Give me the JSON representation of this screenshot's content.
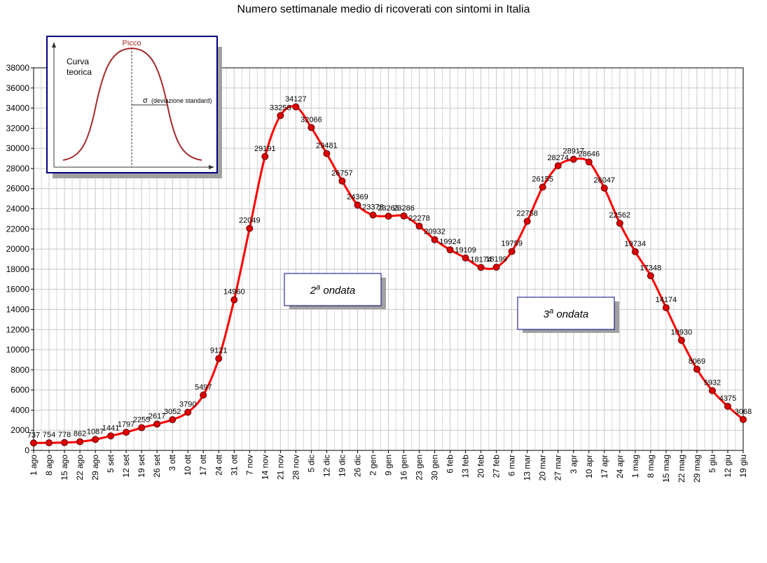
{
  "chart_data": {
    "type": "line",
    "title": "Numero settimanale medio di ricoverati con sintomi in Italia",
    "xlabel": "",
    "ylabel": "",
    "ylim": [
      0,
      38000
    ],
    "ytick_step": 2000,
    "grid": true,
    "line_color": "#ff0000",
    "marker_color": "#dd0000",
    "categories": [
      "1 ago",
      "8 ago",
      "15 ago",
      "22 ago",
      "29 ago",
      "5 set",
      "12 set",
      "19 set",
      "26 set",
      "3 ott",
      "10 ott",
      "17 ott",
      "24 ott",
      "31 ott",
      "7 nov",
      "14 nov",
      "21 nov",
      "28 nov",
      "5 dic",
      "12 dic",
      "19 dic",
      "26 dic",
      "2 gen",
      "9 gen",
      "16 gen",
      "23 gen",
      "30 gen",
      "6 feb",
      "13 feb",
      "20 feb",
      "27 feb",
      "6 mar",
      "13 mar",
      "20 mar",
      "27 mar",
      "3 apr",
      "10 apr",
      "17 apr",
      "24 apr",
      "1 mag",
      "8 mag",
      "15 mag",
      "22 mag",
      "29 mag",
      "5 giu",
      "12 giu",
      "19 giu"
    ],
    "values": [
      737,
      754,
      778,
      862,
      1087,
      1441,
      1797,
      2255,
      2617,
      3052,
      3790,
      5497,
      9121,
      14960,
      22049,
      29191,
      33258,
      34127,
      32066,
      29481,
      26757,
      24369,
      23378,
      23263,
      23286,
      22278,
      20932,
      19924,
      19109,
      18174,
      18199,
      19759,
      22758,
      26155,
      28274,
      28917,
      28646,
      26047,
      22562,
      19734,
      17348,
      14174,
      10930,
      8069,
      5932,
      4375,
      3068
    ],
    "labels": [
      "737",
      "754",
      "778",
      "862",
      "1087",
      "1441",
      "1797",
      "2255",
      "2617",
      "3052",
      "3790",
      "5497",
      "9121",
      "14960",
      "22049",
      "29191",
      "33258",
      "34127",
      "32066",
      "29481",
      "26757",
      "24369",
      "23378",
      "23263",
      "23286",
      "22278",
      "20932",
      "19924",
      "19109",
      "18174",
      "18199",
      "19759",
      "22758",
      "26155",
      "28274",
      "28917",
      "28646",
      "26047",
      "22562",
      "19734",
      "17348",
      "14174",
      "10930",
      "8069",
      "5932",
      "4375",
      "3068"
    ],
    "annotations": [
      {
        "text": "2",
        "sup": "a",
        "rest": " ondata"
      },
      {
        "text": "3",
        "sup": "a",
        "rest": " ondata"
      }
    ],
    "inset": {
      "peak_label": "Picco",
      "curve_label_line1": "Curva",
      "curve_label_line2": "teorica",
      "sigma_label": "σ",
      "sigma_text": "(deviazione standard)"
    }
  }
}
